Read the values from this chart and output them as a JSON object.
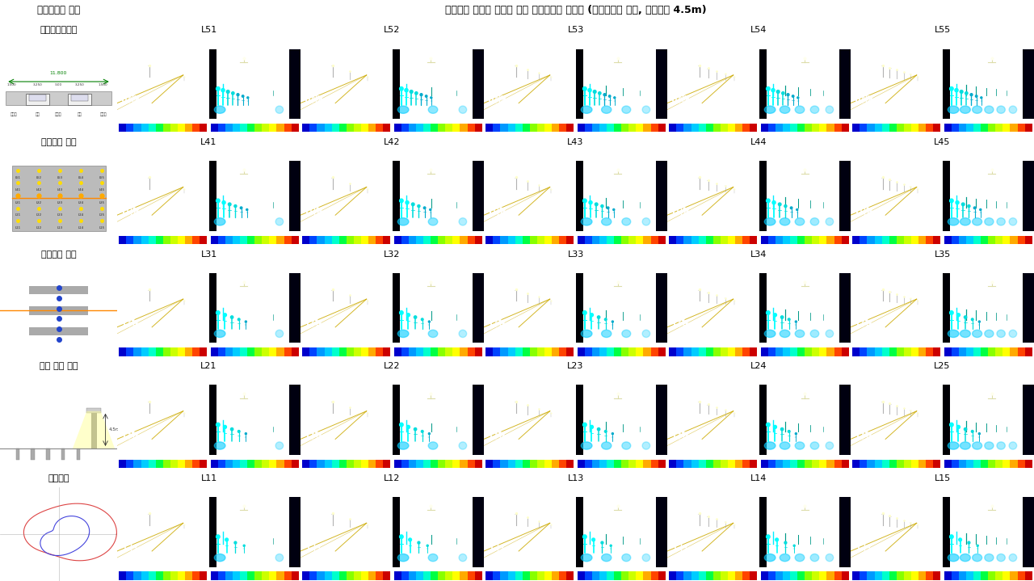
{
  "title_left": "시뮬레이션 방법",
  "title_right": "횡단보도 시인성 평가를 위한 시뮬레이션 이미지 (비대칭배광 적용, 설치높이 4.5m)",
  "row_headers": [
    "도로표준횡단면",
    "조명등의 위치",
    "보행자의 위치",
    "기구 설치 높이",
    "적용배광"
  ],
  "col_headers_per_row": [
    [
      "L51",
      "L52",
      "L53",
      "L54",
      "L55"
    ],
    [
      "L41",
      "L42",
      "L43",
      "L44",
      "L45"
    ],
    [
      "L31",
      "L32",
      "L33",
      "L34",
      "L35"
    ],
    [
      "L21",
      "L22",
      "L23",
      "L24",
      "L25"
    ],
    [
      "L11",
      "L12",
      "L13",
      "L14",
      "L15"
    ]
  ],
  "num_rows": 5,
  "num_cols": 5
}
